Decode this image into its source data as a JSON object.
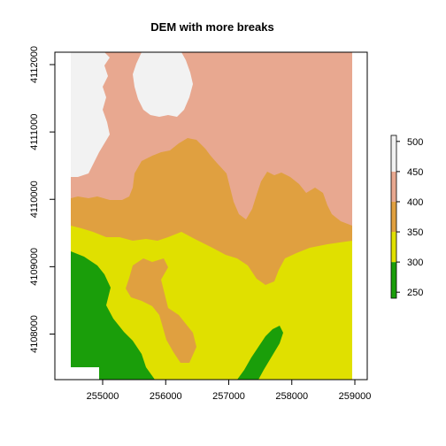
{
  "title": "DEM with more breaks",
  "chart_data": {
    "type": "heatmap",
    "title": "DEM with more breaks",
    "x_ticks": [
      255000,
      256000,
      257000,
      258000,
      259000
    ],
    "y_ticks": [
      4108000,
      4109000,
      4110000,
      4111000,
      4112000
    ],
    "legend": {
      "placement": "right",
      "ticks": [
        250,
        300,
        350,
        400,
        450,
        500
      ],
      "breaks": [
        {
          "from": 240,
          "to": 300,
          "color": "#1a9e0a"
        },
        {
          "from": 300,
          "to": 350,
          "color": "#e0e000"
        },
        {
          "from": 350,
          "to": 400,
          "color": "#e0a040"
        },
        {
          "from": 400,
          "to": 450,
          "color": "#e8a890"
        },
        {
          "from": 450,
          "to": 510,
          "color": "#f2f2f2"
        }
      ]
    },
    "colors": {
      "white": "#ffffff",
      "green": "#1a9e0a",
      "yellow": "#e0e000",
      "orange": "#e0a040",
      "salmon": "#e8a890",
      "light": "#f2f2f2"
    }
  }
}
